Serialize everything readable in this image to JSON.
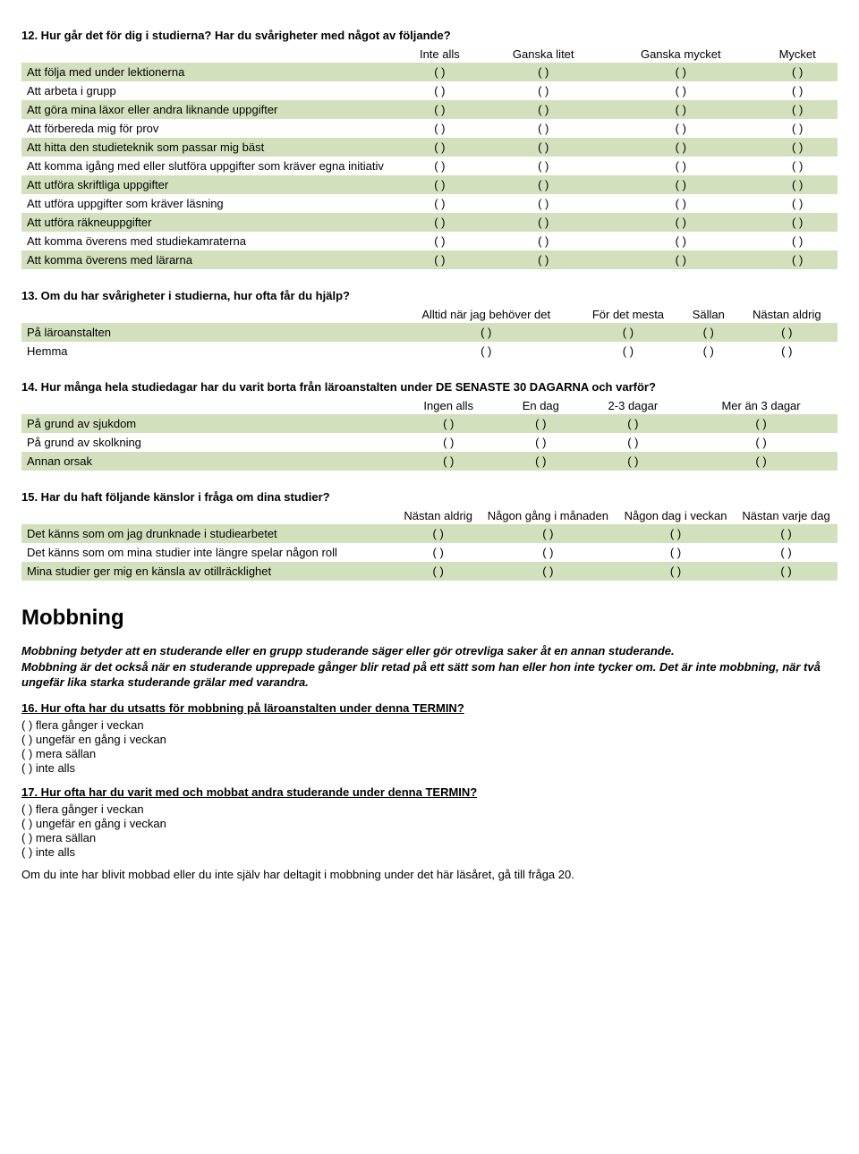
{
  "colors": {
    "row_odd_bg": "#d3e0bd",
    "row_even_bg": "#ffffff",
    "text": "#000000"
  },
  "cell_text": "( )",
  "q12": {
    "title": "12. Hur går det för dig i studierna? Har du svårigheter med något av följande?",
    "headers": [
      "Inte alls",
      "Ganska litet",
      "Ganska mycket",
      "Mycket"
    ],
    "rows": [
      "Att följa med under lektionerna",
      "Att arbeta i grupp",
      "Att göra mina läxor eller andra liknande uppgifter",
      "Att förbereda mig för prov",
      "Att hitta den studieteknik som passar mig bäst",
      "Att komma igång med eller slutföra uppgifter som kräver egna initiativ",
      "Att utföra skriftliga uppgifter",
      "Att utföra uppgifter som kräver läsning",
      "Att utföra räkneuppgifter",
      "Att komma överens med studiekamraterna",
      "Att komma överens med lärarna"
    ]
  },
  "q13": {
    "title": "13. Om du har svårigheter i studierna, hur ofta får du hjälp?",
    "headers": [
      "Alltid när jag behöver det",
      "För det mesta",
      "Sällan",
      "Nästan aldrig"
    ],
    "rows": [
      "På läroanstalten",
      "Hemma"
    ]
  },
  "q14": {
    "title": "14. Hur många hela studiedagar har du varit borta från läroanstalten under DE SENASTE 30 DAGARNA och varför?",
    "headers": [
      "Ingen alls",
      "En dag",
      "2-3 dagar",
      "Mer än 3 dagar"
    ],
    "rows": [
      "På grund av sjukdom",
      "På grund av skolkning",
      "Annan orsak"
    ]
  },
  "q15": {
    "title": "15. Har du haft följande känslor i fråga om dina studier?",
    "headers": [
      "Nästan aldrig",
      "Någon gång i månaden",
      "Någon dag i veckan",
      "Nästan varje dag"
    ],
    "rows": [
      "Det känns som om jag drunknade i studiearbetet",
      "Det känns som om mina studier inte längre spelar någon roll",
      "Mina studier ger mig en känsla av otillräcklighet"
    ]
  },
  "mobbing": {
    "heading": "Mobbning",
    "intro_line1": "Mobbning betyder att en studerande eller en grupp studerande säger eller gör otrevliga saker åt en annan studerande.",
    "intro_line2a": "Mobbning är det också när en studerande upprepade gånger blir retad på ett sätt som han eller hon inte tycker om. ",
    "intro_line2b": "Det är inte mobbning, när två ungefär lika starka studerande grälar med varandra."
  },
  "q16": {
    "title": "16. Hur ofta har du utsatts för mobbning på läroanstalten under denna TERMIN?",
    "options": [
      "flera gånger i veckan",
      "ungefär en gång i veckan",
      "mera sällan",
      "inte alls"
    ]
  },
  "q17": {
    "title": "17. Hur ofta har du varit med och mobbat andra studerande under denna TERMIN?",
    "options": [
      "flera gånger i veckan",
      "ungefär en gång i veckan",
      "mera sällan",
      "inte alls"
    ]
  },
  "skip_note": "Om du inte har blivit mobbad eller du inte själv har deltagit i mobbning under det här läsåret, gå till fråga 20."
}
